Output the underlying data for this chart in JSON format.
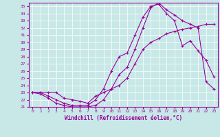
{
  "xlabel": "Windchill (Refroidissement éolien,°C)",
  "bg_color": "#c8e8e8",
  "line_color": "#990099",
  "grid_color": "#ffffff",
  "xlim": [
    -0.5,
    23.5
  ],
  "ylim": [
    21,
    35.5
  ],
  "x_ticks": [
    0,
    1,
    2,
    3,
    4,
    5,
    6,
    7,
    8,
    9,
    10,
    11,
    12,
    13,
    14,
    15,
    16,
    17,
    18,
    19,
    20,
    21,
    22,
    23
  ],
  "y_ticks": [
    21,
    22,
    23,
    24,
    25,
    26,
    27,
    28,
    29,
    30,
    31,
    32,
    33,
    34,
    35
  ],
  "curve1_x": [
    0,
    1,
    2,
    3,
    4,
    5,
    6,
    7,
    8,
    9,
    10,
    11,
    12,
    13,
    14,
    15,
    16,
    17,
    18,
    19,
    20,
    21,
    22,
    23
  ],
  "curve1_y": [
    23.0,
    23.0,
    23.0,
    23.0,
    22.2,
    22.0,
    21.8,
    21.5,
    22.5,
    23.0,
    23.5,
    24.0,
    25.0,
    27.0,
    29.0,
    30.0,
    30.5,
    31.2,
    31.5,
    31.8,
    32.0,
    32.2,
    32.5,
    32.5
  ],
  "curve2_x": [
    0,
    1,
    2,
    3,
    4,
    5,
    6,
    7,
    8,
    9,
    10,
    11,
    12,
    13,
    14,
    15,
    16,
    17,
    18,
    19,
    20,
    21,
    22,
    23
  ],
  "curve2_y": [
    23.0,
    23.0,
    22.5,
    22.0,
    21.5,
    21.2,
    21.2,
    21.2,
    22.0,
    23.5,
    26.0,
    28.0,
    28.5,
    31.0,
    33.5,
    35.0,
    35.3,
    34.0,
    33.0,
    29.5,
    30.2,
    28.8,
    27.5,
    25.2
  ],
  "curve3_x": [
    0,
    1,
    2,
    3,
    4,
    5,
    6,
    7,
    8,
    9,
    10,
    11,
    12,
    13,
    14,
    15,
    16,
    17,
    18,
    19,
    20,
    21,
    22,
    23
  ],
  "curve3_y": [
    23.0,
    22.8,
    22.2,
    21.5,
    21.2,
    21.0,
    21.0,
    21.0,
    21.2,
    22.0,
    23.5,
    25.5,
    26.5,
    29.0,
    32.0,
    34.8,
    35.5,
    34.5,
    33.8,
    33.0,
    32.5,
    32.0,
    24.5,
    23.5
  ]
}
